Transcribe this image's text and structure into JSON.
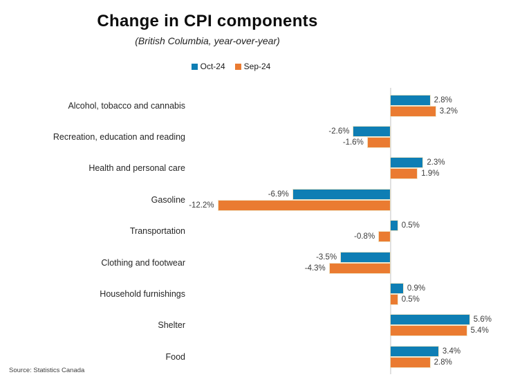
{
  "title": "Change in CPI components",
  "subtitle": "(British Columbia, year-over-year)",
  "source": "Source: Statistics Canada",
  "legend": [
    {
      "label": "Oct-24",
      "color": "#0e7eb4"
    },
    {
      "label": "Sep-24",
      "color": "#ea7b31"
    }
  ],
  "colors": {
    "oct_blue": "#0e7eb4",
    "sep_orange": "#ea7b31",
    "axis_line": "#e0e0e0",
    "category_label": "#262626",
    "value_label": "#3c3c3c"
  },
  "chart_data": {
    "type": "bar",
    "orientation": "horizontal",
    "title": "Change in CPI components",
    "subtitle": "(British Columbia, year-over-year)",
    "legend_position": "top-center",
    "grid": false,
    "zero_axis": true,
    "xlim": [
      -13,
      6.5
    ],
    "unit": "%",
    "categories": [
      "Alcohol, tobacco and cannabis",
      "Recreation, education and reading",
      "Health and personal care",
      "Gasoline",
      "Transportation",
      "Clothing and footwear",
      "Household furnishings",
      "Shelter",
      "Food"
    ],
    "series": [
      {
        "name": "Oct-24",
        "color": "#0e7eb4",
        "values": [
          2.8,
          -2.6,
          2.3,
          -6.9,
          0.5,
          -3.5,
          0.9,
          5.6,
          3.4
        ]
      },
      {
        "name": "Sep-24",
        "color": "#ea7b31",
        "values": [
          3.2,
          -1.6,
          1.9,
          -12.2,
          -0.8,
          -4.3,
          0.5,
          5.4,
          2.8
        ]
      }
    ],
    "value_labels": [
      [
        "2.8%",
        "3.2%"
      ],
      [
        "-2.6%",
        "-1.6%"
      ],
      [
        "2.3%",
        "1.9%"
      ],
      [
        "-6.9%",
        "-12.2%"
      ],
      [
        "0.5%",
        "-0.8%"
      ],
      [
        "-3.5%",
        "-4.3%"
      ],
      [
        "0.9%",
        "0.5%"
      ],
      [
        "5.6%",
        "5.4%"
      ],
      [
        "3.4%",
        "2.8%"
      ]
    ]
  }
}
